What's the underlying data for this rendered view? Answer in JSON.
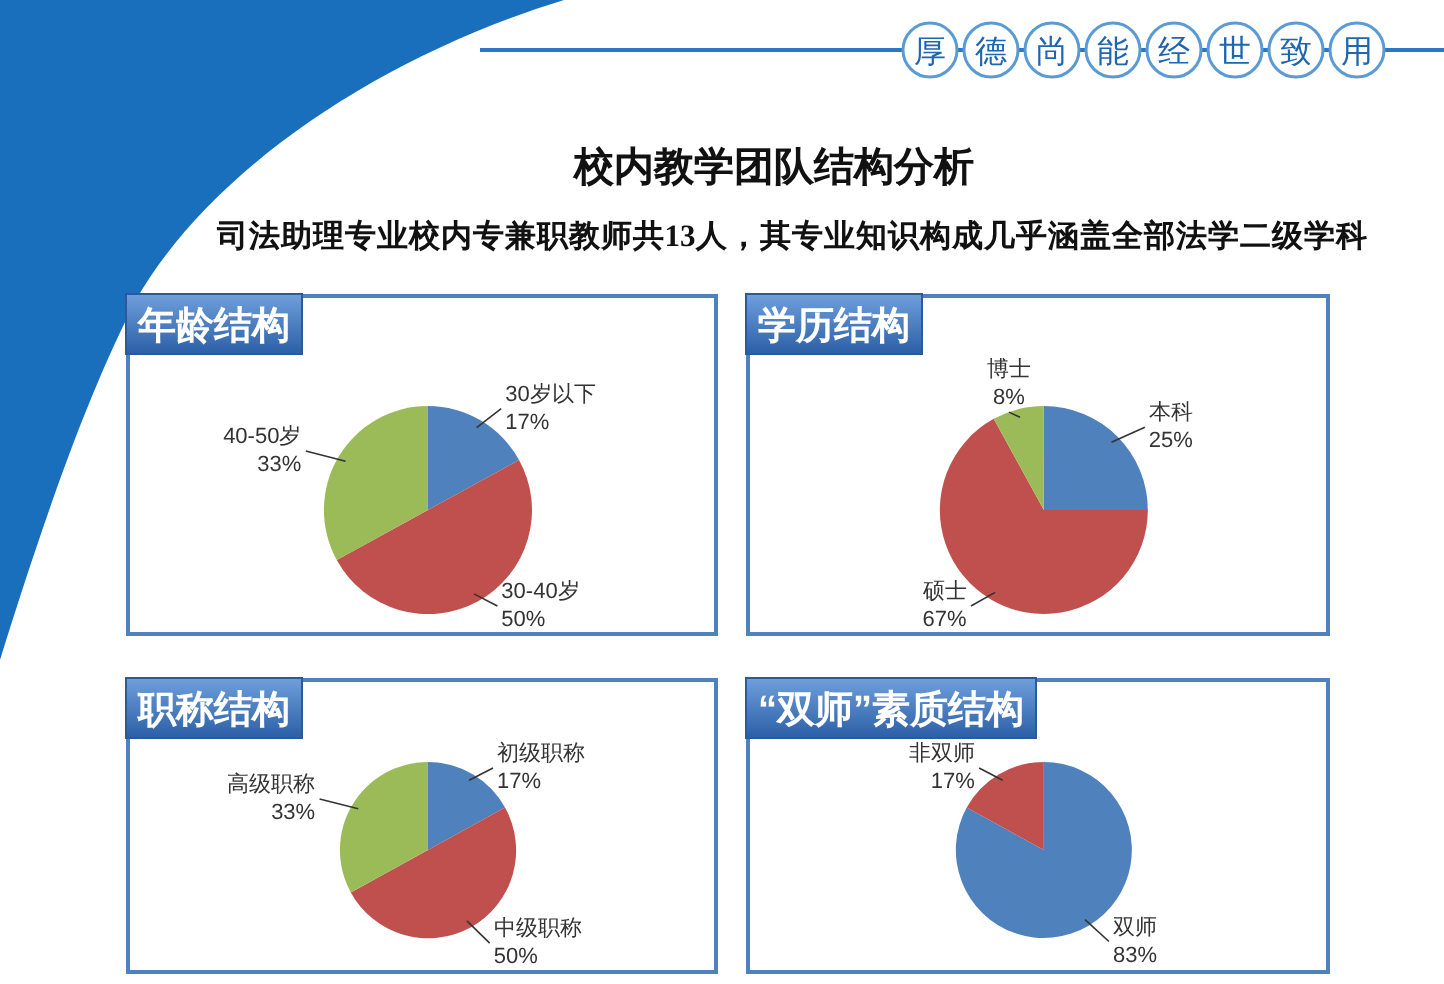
{
  "chart_data": [
    {
      "type": "pie",
      "title": "年龄结构",
      "categories": [
        "30岁以下",
        "30-40岁",
        "40-50岁"
      ],
      "values": [
        17,
        50,
        33
      ],
      "value_labels": [
        "17%",
        "50%",
        "33%"
      ],
      "colors": [
        "#4f81bd",
        "#c0504d",
        "#9bbb59"
      ],
      "annotations": [
        "厚德尚能经世致用",
        "校内教学团队结构分析",
        "司法助理专业校内专兼职教师共13人，其专业知识构成几乎涵盖全部法学二级学科"
      ]
    },
    {
      "type": "pie",
      "title": "学历结构",
      "categories": [
        "本科",
        "硕士",
        "博士"
      ],
      "values": [
        25,
        67,
        8
      ],
      "value_labels": [
        "25%",
        "67%",
        "8%"
      ],
      "colors": [
        "#4f81bd",
        "#c0504d",
        "#9bbb59"
      ]
    },
    {
      "type": "pie",
      "title": "职称结构",
      "categories": [
        "初级职称",
        "中级职称",
        "高级职称"
      ],
      "values": [
        17,
        50,
        33
      ],
      "value_labels": [
        "17%",
        "50%",
        "33%"
      ],
      "colors": [
        "#4f81bd",
        "#c0504d",
        "#9bbb59"
      ]
    },
    {
      "type": "pie",
      "title": "“双师”素质结构",
      "categories": [
        "双师",
        "非双师"
      ],
      "values": [
        83,
        17
      ],
      "value_labels": [
        "83%",
        "17%"
      ],
      "colors": [
        "#4f81bd",
        "#c0504d"
      ]
    }
  ]
}
